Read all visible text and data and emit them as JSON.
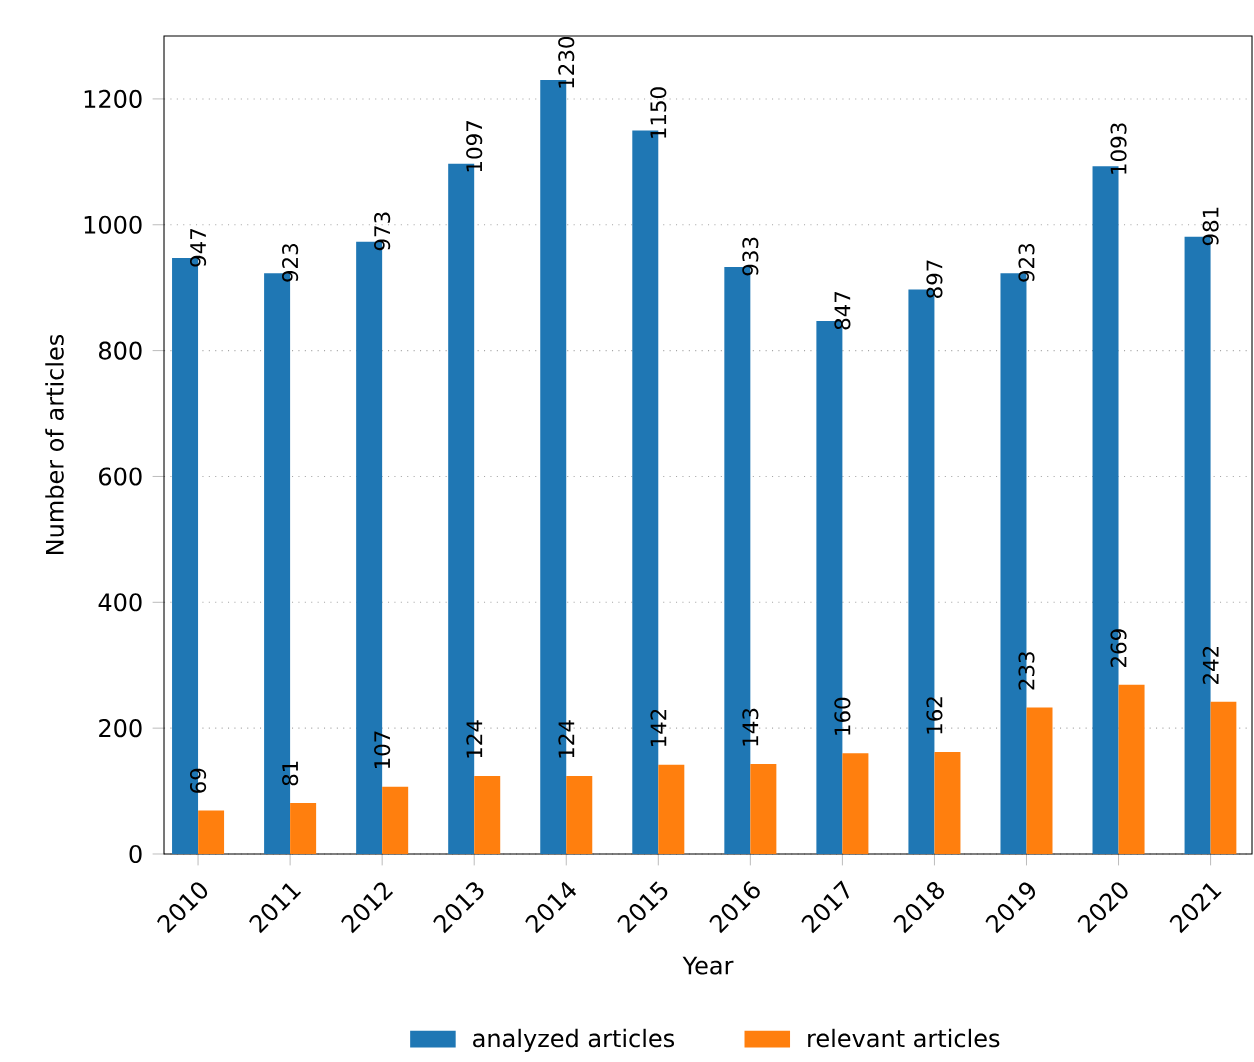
{
  "chart_data": {
    "type": "bar",
    "xlabel": "Year",
    "ylabel": "Number of articles",
    "categories": [
      "2010",
      "2011",
      "2012",
      "2013",
      "2014",
      "2015",
      "2016",
      "2017",
      "2018",
      "2019",
      "2020",
      "2021"
    ],
    "series": [
      {
        "name": "analyzed articles",
        "color": "#1f77b4",
        "values": [
          947,
          923,
          973,
          1097,
          1230,
          1150,
          933,
          847,
          897,
          923,
          1093,
          981
        ]
      },
      {
        "name": "relevant articles",
        "color": "#ff7f0e",
        "values": [
          69,
          81,
          107,
          124,
          124,
          142,
          143,
          160,
          162,
          233,
          269,
          242
        ]
      }
    ],
    "ylim": [
      0,
      1300
    ],
    "yticks": [
      0,
      200,
      400,
      600,
      800,
      1000,
      1200
    ],
    "grid": "y",
    "legend": "bottom",
    "data_labels": true
  }
}
